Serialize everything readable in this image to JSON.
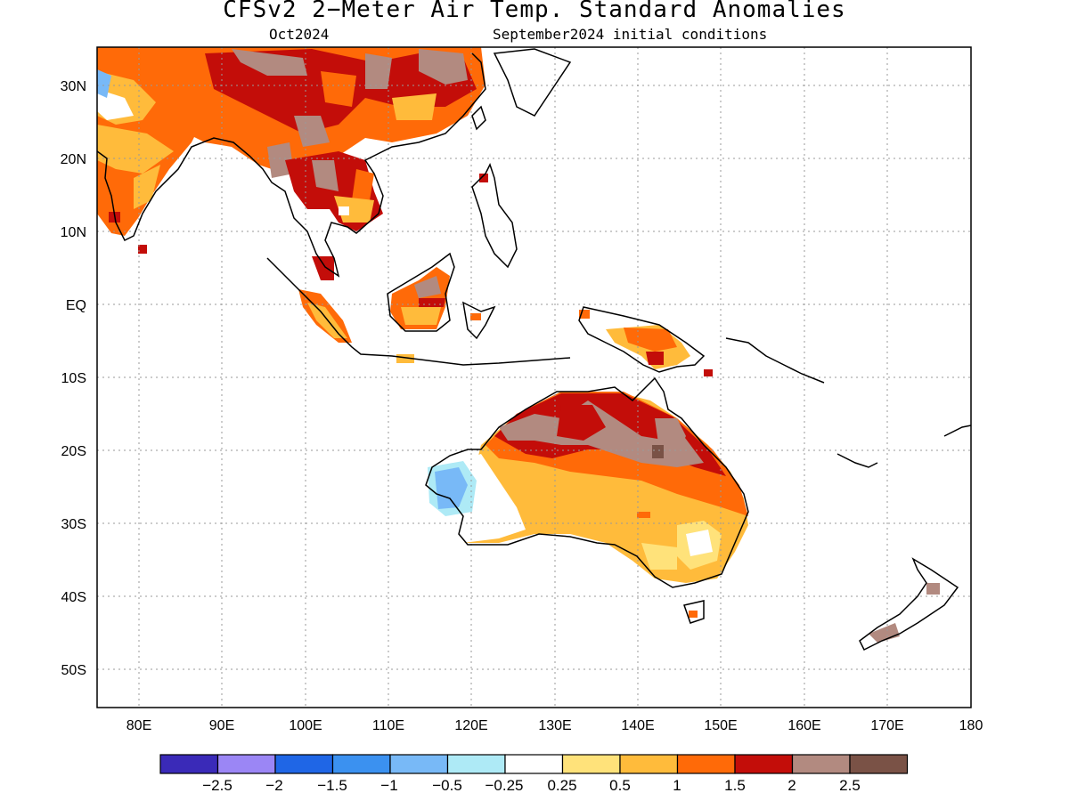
{
  "header": {
    "title": "CFSv2 2−Meter Air Temp. Standard Anomalies",
    "valid_month": "Oct2024",
    "initial_conditions": "September2024 initial conditions"
  },
  "map": {
    "lon_range": [
      75,
      180
    ],
    "lat_range": [
      -55,
      35
    ],
    "lat_labels": [
      "30N",
      "20N",
      "10N",
      "EQ",
      "10S",
      "20S",
      "30S",
      "40S",
      "50S"
    ],
    "lon_labels": [
      "80E",
      "90E",
      "100E",
      "110E",
      "120E",
      "130E",
      "140E",
      "150E",
      "160E",
      "170E",
      "180"
    ],
    "gridlines": "dotted",
    "regions": [
      {
        "name": "India",
        "dominant_anomaly": "1 to 1.5"
      },
      {
        "name": "Tibet/Southern China",
        "dominant_anomaly": "1.5 to 2.5"
      },
      {
        "name": "Indochina",
        "dominant_anomaly": "1.5 to 2"
      },
      {
        "name": "Borneo",
        "dominant_anomaly": "1 to 2"
      },
      {
        "name": "New Guinea",
        "dominant_anomaly": "0.5 to 1.5"
      },
      {
        "name": "Northern Australia",
        "dominant_anomaly": "2 to 3"
      },
      {
        "name": "Western Australia coast",
        "dominant_anomaly": "-1 to -0.25"
      },
      {
        "name": "Southeastern Australia",
        "dominant_anomaly": "0.5 to 1.5"
      },
      {
        "name": "New Zealand",
        "dominant_anomaly": "2 to 2.5"
      }
    ]
  },
  "colorbar": {
    "labels": [
      "−2.5",
      "−2",
      "−1.5",
      "−1",
      "−0.5",
      "−0.25",
      "0.25",
      "0.5",
      "1",
      "1.5",
      "2",
      "2.5"
    ],
    "colors": [
      "#3a2ab8",
      "#9b86f5",
      "#1f66e6",
      "#3b91f0",
      "#78b9f7",
      "#aeeaf6",
      "#ffffff",
      "#ffe27a",
      "#ffbb3b",
      "#ff6a08",
      "#c30d09",
      "#b28a80",
      "#7a5246"
    ]
  }
}
